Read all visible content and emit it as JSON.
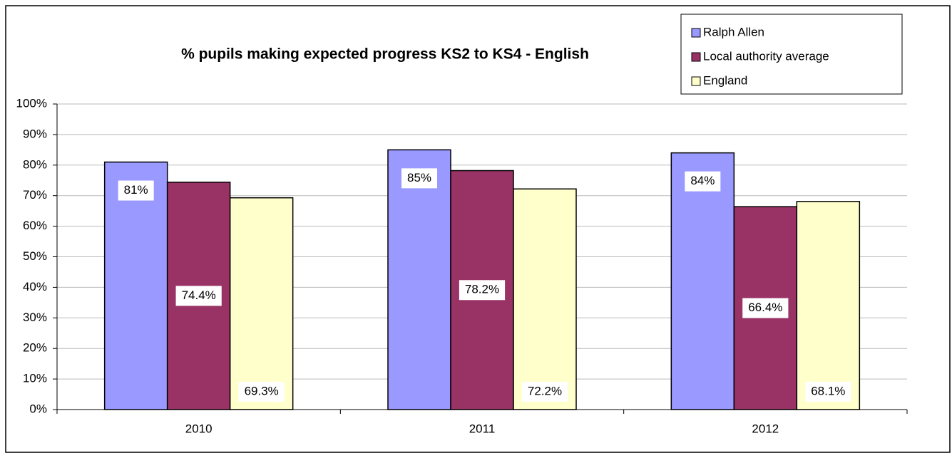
{
  "chart_data": {
    "type": "bar",
    "title": "% pupils making expected progress KS2 to KS4 - English",
    "categories": [
      "2010",
      "2011",
      "2012"
    ],
    "series": [
      {
        "name": "Ralph Allen",
        "color": "#9999ff",
        "values": [
          81,
          85,
          84
        ],
        "value_labels": [
          "81%",
          "85%",
          "84%"
        ]
      },
      {
        "name": "Local authority average",
        "color": "#993366",
        "values": [
          74.4,
          78.2,
          66.4
        ],
        "value_labels": [
          "74.4%",
          "78.2%",
          "66.4%"
        ]
      },
      {
        "name": "England",
        "color": "#ffffcc",
        "values": [
          69.3,
          72.2,
          68.1
        ],
        "value_labels": [
          "69.3%",
          "72.2%",
          "68.1%"
        ]
      }
    ],
    "ylim": [
      0,
      100
    ],
    "yticks": [
      {
        "value": 0,
        "label": "0%"
      },
      {
        "value": 10,
        "label": "10%"
      },
      {
        "value": 20,
        "label": "20%"
      },
      {
        "value": 30,
        "label": "30%"
      },
      {
        "value": 40,
        "label": "40%"
      },
      {
        "value": 50,
        "label": "50%"
      },
      {
        "value": 60,
        "label": "60%"
      },
      {
        "value": 70,
        "label": "70%"
      },
      {
        "value": 80,
        "label": "80%"
      },
      {
        "value": 90,
        "label": "90%"
      },
      {
        "value": 100,
        "label": "100%"
      }
    ],
    "grid": true,
    "legend": "top-right"
  }
}
